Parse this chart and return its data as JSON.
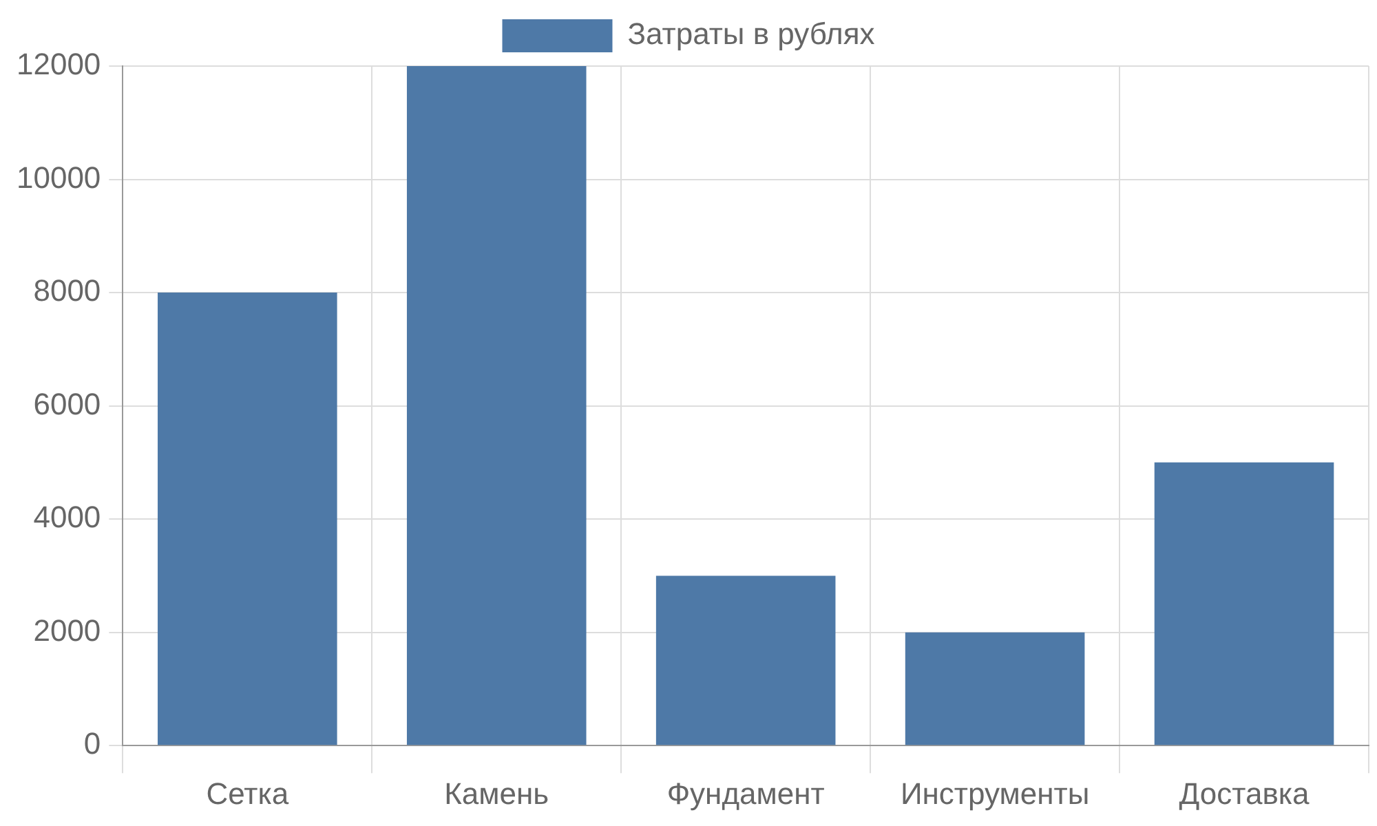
{
  "chart_data": {
    "type": "bar",
    "categories": [
      "Сетка",
      "Камень",
      "Фундамент",
      "Инструменты",
      "Доставка"
    ],
    "series": [
      {
        "name": "Затраты в рублях",
        "color": "#4e79a7",
        "values": [
          8000,
          12000,
          3000,
          2000,
          5000
        ]
      }
    ],
    "ylim": [
      0,
      12000
    ],
    "yticks": [
      0,
      2000,
      4000,
      6000,
      8000,
      10000,
      12000
    ],
    "grid": true,
    "legend": "top"
  }
}
